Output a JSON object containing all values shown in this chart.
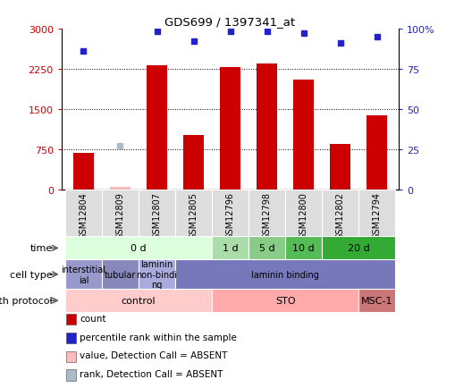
{
  "title": "GDS699 / 1397341_at",
  "samples": [
    "GSM12804",
    "GSM12809",
    "GSM12807",
    "GSM12805",
    "GSM12796",
    "GSM12798",
    "GSM12800",
    "GSM12802",
    "GSM12794"
  ],
  "count_values": [
    680,
    50,
    2320,
    1020,
    2280,
    2350,
    2050,
    850,
    1380
  ],
  "percentile_values": [
    86,
    27,
    98,
    92,
    98,
    98,
    97,
    91,
    95
  ],
  "absent_count_idx": 1,
  "absent_rank_idx": 1,
  "absent_count_val": 50,
  "absent_rank_val": 27,
  "ylim_left": [
    0,
    3000
  ],
  "ylim_right": [
    0,
    100
  ],
  "yticks_left": [
    0,
    750,
    1500,
    2250,
    3000
  ],
  "yticks_right": [
    0,
    25,
    50,
    75,
    100
  ],
  "ytick_labels_left": [
    "0",
    "750",
    "1500",
    "2250",
    "3000"
  ],
  "ytick_labels_right": [
    "0",
    "25",
    "50",
    "75",
    "100%"
  ],
  "bar_color": "#cc0000",
  "dot_color": "#2222cc",
  "absent_bar_color": "#ffbbbb",
  "absent_dot_color": "#aabbcc",
  "time_groups": [
    {
      "label": "0 d",
      "start": 0,
      "end": 4,
      "color": "#ddffdd"
    },
    {
      "label": "1 d",
      "start": 4,
      "end": 5,
      "color": "#aaddaa"
    },
    {
      "label": "5 d",
      "start": 5,
      "end": 6,
      "color": "#88cc88"
    },
    {
      "label": "10 d",
      "start": 6,
      "end": 7,
      "color": "#55bb55"
    },
    {
      "label": "20 d",
      "start": 7,
      "end": 9,
      "color": "#33aa33"
    }
  ],
  "cell_type_groups": [
    {
      "label": "interstitial\nial",
      "start": 0,
      "end": 1,
      "color": "#9999cc"
    },
    {
      "label": "tubular",
      "start": 1,
      "end": 2,
      "color": "#8888bb"
    },
    {
      "label": "laminin\nnon-bindi\nng",
      "start": 2,
      "end": 3,
      "color": "#aaaadd"
    },
    {
      "label": "laminin binding",
      "start": 3,
      "end": 9,
      "color": "#7777bb"
    }
  ],
  "growth_groups": [
    {
      "label": "control",
      "start": 0,
      "end": 4,
      "color": "#ffcccc"
    },
    {
      "label": "STO",
      "start": 4,
      "end": 8,
      "color": "#ffaaaa"
    },
    {
      "label": "MSC-1",
      "start": 8,
      "end": 9,
      "color": "#cc7777"
    }
  ],
  "legend_items": [
    {
      "label": "count",
      "color": "#cc0000"
    },
    {
      "label": "percentile rank within the sample",
      "color": "#2222cc"
    },
    {
      "label": "value, Detection Call = ABSENT",
      "color": "#ffbbbb"
    },
    {
      "label": "rank, Detection Call = ABSENT",
      "color": "#aabbcc"
    }
  ],
  "bg_color": "#ffffff",
  "tick_color_left": "#cc0000",
  "tick_color_right": "#2222cc"
}
